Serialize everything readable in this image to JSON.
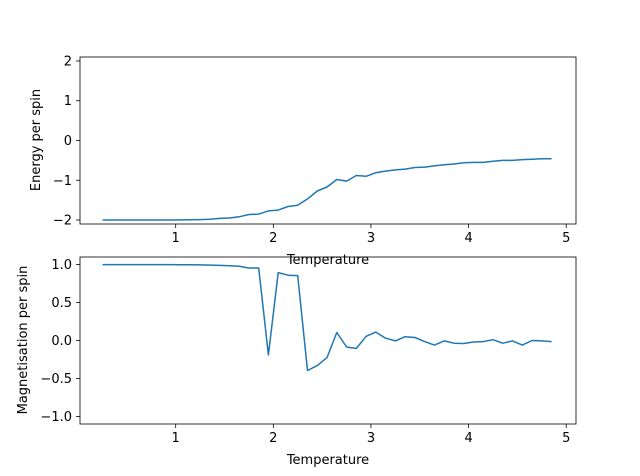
{
  "chart_data": [
    {
      "type": "line",
      "xlabel": "Temperature",
      "ylabel": "Energy per spin",
      "xlim": [
        0.02,
        5.1
      ],
      "ylim": [
        -2.1,
        2.1
      ],
      "xticks": [
        1,
        2,
        3,
        4,
        5
      ],
      "yticks": [
        -2,
        -1,
        0,
        1,
        2
      ],
      "grid": false,
      "line_color": "#1f77b4",
      "x": [
        0.25,
        0.35,
        0.45,
        0.55,
        0.65,
        0.75,
        0.85,
        0.95,
        1.05,
        1.15,
        1.25,
        1.35,
        1.45,
        1.55,
        1.65,
        1.75,
        1.85,
        1.95,
        2.05,
        2.15,
        2.25,
        2.35,
        2.45,
        2.55,
        2.65,
        2.75,
        2.85,
        2.95,
        3.05,
        3.15,
        3.25,
        3.35,
        3.45,
        3.55,
        3.65,
        3.75,
        3.85,
        3.95,
        4.05,
        4.15,
        4.25,
        4.35,
        4.45,
        4.55,
        4.65,
        4.75,
        4.85
      ],
      "y": [
        -2.0,
        -2.0,
        -2.0,
        -2.0,
        -2.0,
        -2.0,
        -2.0,
        -2.0,
        -1.998,
        -1.995,
        -1.99,
        -1.98,
        -1.96,
        -1.95,
        -1.92,
        -1.86,
        -1.85,
        -1.77,
        -1.75,
        -1.66,
        -1.63,
        -1.47,
        -1.27,
        -1.17,
        -0.98,
        -1.02,
        -0.88,
        -0.9,
        -0.81,
        -0.77,
        -0.74,
        -0.72,
        -0.68,
        -0.67,
        -0.64,
        -0.61,
        -0.59,
        -0.56,
        -0.55,
        -0.55,
        -0.52,
        -0.5,
        -0.5,
        -0.48,
        -0.47,
        -0.46,
        -0.46
      ]
    },
    {
      "type": "line",
      "xlabel": "Temperature",
      "ylabel": "Magnetisation per spin",
      "xlim": [
        0.02,
        5.1
      ],
      "ylim": [
        -1.1,
        1.1
      ],
      "xticks": [
        1,
        2,
        3,
        4,
        5
      ],
      "yticks": [
        -1.0,
        -0.5,
        0.0,
        0.5,
        1.0
      ],
      "grid": false,
      "line_color": "#1f77b4",
      "x": [
        0.25,
        0.35,
        0.45,
        0.55,
        0.65,
        0.75,
        0.85,
        0.95,
        1.05,
        1.15,
        1.25,
        1.35,
        1.45,
        1.55,
        1.65,
        1.75,
        1.85,
        1.95,
        2.05,
        2.15,
        2.25,
        2.35,
        2.45,
        2.55,
        2.65,
        2.75,
        2.85,
        2.95,
        3.05,
        3.15,
        3.25,
        3.35,
        3.45,
        3.55,
        3.65,
        3.75,
        3.85,
        3.95,
        4.05,
        4.15,
        4.25,
        4.35,
        4.45,
        4.55,
        4.65,
        4.75,
        4.85
      ],
      "y": [
        1.0,
        1.0,
        1.0,
        1.0,
        1.0,
        1.0,
        1.0,
        1.0,
        0.999,
        0.998,
        0.996,
        0.993,
        0.989,
        0.984,
        0.977,
        0.955,
        0.955,
        -0.19,
        0.895,
        0.86,
        0.855,
        -0.395,
        -0.33,
        -0.225,
        0.105,
        -0.085,
        -0.105,
        0.055,
        0.11,
        0.03,
        -0.005,
        0.05,
        0.04,
        -0.015,
        -0.06,
        -0.005,
        -0.035,
        -0.04,
        -0.02,
        -0.015,
        0.01,
        -0.035,
        -0.005,
        -0.06,
        0.0,
        -0.005,
        -0.015
      ]
    }
  ]
}
